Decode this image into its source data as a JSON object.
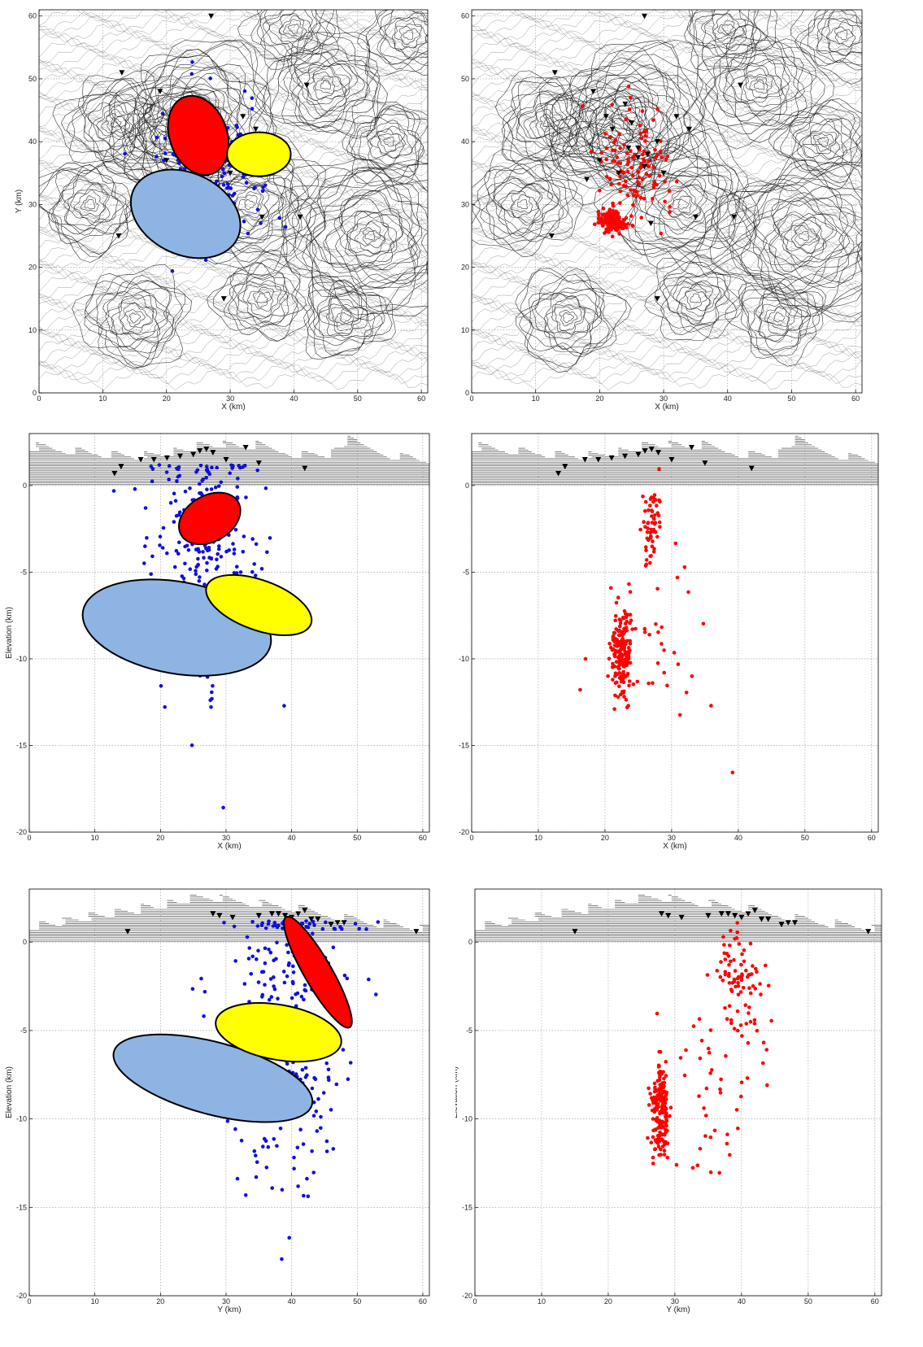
{
  "chart_data": [
    {
      "id": "map-blue",
      "type": "scatter",
      "title": "",
      "xlabel": "X (km)",
      "ylabel": "Y (km)",
      "xlim": [
        0,
        61
      ],
      "ylim": [
        0,
        61
      ],
      "xticks": [
        0,
        10,
        20,
        30,
        40,
        50,
        60
      ],
      "yticks": [
        0,
        10,
        20,
        30,
        40,
        50,
        60
      ],
      "grid": true,
      "background": "topographic contour lines",
      "series": [
        {
          "marker": "dot",
          "color": "#1010e0",
          "cluster": {
            "cx": 27,
            "cy": 36,
            "sx": 4.0,
            "sy": 5.5,
            "n": 260
          }
        }
      ],
      "stations": [
        [
          13,
          51
        ],
        [
          19,
          48
        ],
        [
          21,
          44
        ],
        [
          22,
          42
        ],
        [
          24,
          46
        ],
        [
          25,
          43
        ],
        [
          26,
          39
        ],
        [
          27,
          36
        ],
        [
          23,
          35
        ],
        [
          18,
          34
        ],
        [
          20,
          37
        ],
        [
          28,
          27
        ],
        [
          35,
          28
        ],
        [
          41,
          28
        ],
        [
          42,
          49
        ],
        [
          34,
          42
        ],
        [
          32,
          44
        ],
        [
          29,
          40
        ],
        [
          30,
          35
        ],
        [
          12.5,
          25
        ],
        [
          29,
          15
        ],
        [
          27,
          60
        ],
        [
          24.5,
          39
        ],
        [
          26,
          37.5
        ],
        [
          27.5,
          38
        ]
      ],
      "ellipses": [
        {
          "name": "",
          "color": "#ff0000",
          "cx": 25,
          "cy": 41,
          "rx": 4.5,
          "ry": 6.5,
          "rotation": 20
        },
        {
          "name": "",
          "color": "#ffff00",
          "cx": 34.5,
          "cy": 38,
          "rx": 5,
          "ry": 3.5,
          "rotation": 0
        },
        {
          "name": "",
          "color": "#8eb4e3",
          "cx": 23,
          "cy": 28.5,
          "rx": 9,
          "ry": 6.5,
          "rotation": -25
        }
      ]
    },
    {
      "id": "map-red",
      "type": "scatter",
      "title": "",
      "xlabel": "X (km)",
      "ylabel": "Y (km)",
      "xlim": [
        0,
        61
      ],
      "ylim": [
        0,
        61
      ],
      "xticks": [
        0,
        10,
        20,
        30,
        40,
        50,
        60
      ],
      "yticks": [
        0,
        10,
        20,
        30,
        40,
        50,
        60
      ],
      "grid": true,
      "background": "topographic contour lines",
      "series": [
        {
          "marker": "dot",
          "color": "#ff0000",
          "cluster": {
            "cx": 26,
            "cy": 36,
            "sx": 2.5,
            "sy": 4.5,
            "n": 120
          }
        },
        {
          "marker": "dot",
          "color": "#ff0000",
          "cluster": {
            "cx": 22,
            "cy": 27.5,
            "sx": 1.0,
            "sy": 1.0,
            "n": 180
          }
        }
      ],
      "stations": [
        [
          13,
          51
        ],
        [
          19,
          48
        ],
        [
          21,
          44
        ],
        [
          22,
          42
        ],
        [
          24,
          46
        ],
        [
          25,
          43
        ],
        [
          26,
          39
        ],
        [
          27,
          36
        ],
        [
          23,
          35
        ],
        [
          18,
          34
        ],
        [
          20,
          37
        ],
        [
          28,
          27
        ],
        [
          35,
          28
        ],
        [
          41,
          28
        ],
        [
          42,
          49
        ],
        [
          34,
          42
        ],
        [
          32,
          44
        ],
        [
          29,
          40
        ],
        [
          30,
          35
        ],
        [
          12.5,
          25
        ],
        [
          29,
          15
        ],
        [
          27,
          60
        ],
        [
          24.5,
          39
        ],
        [
          26,
          37.5
        ],
        [
          27.5,
          38
        ]
      ]
    },
    {
      "id": "xsec-x-blue",
      "type": "scatter",
      "title": "",
      "xlabel": "X (km)",
      "ylabel": "Elevation (km)",
      "xlim": [
        0,
        61
      ],
      "ylim": [
        -20,
        3
      ],
      "xticks": [
        0,
        10,
        20,
        30,
        40,
        50,
        60
      ],
      "yticks": [
        -20,
        -15,
        -10,
        -5,
        0
      ],
      "grid": true,
      "background": "topographic profile",
      "topography": [
        [
          0,
          2.3
        ],
        [
          5,
          2.1
        ],
        [
          10,
          1.9
        ],
        [
          15,
          1.7
        ],
        [
          20,
          1.8
        ],
        [
          25,
          2.2
        ],
        [
          28,
          2.5
        ],
        [
          32,
          2.2
        ],
        [
          35,
          2.4
        ],
        [
          38,
          2.0
        ],
        [
          42,
          1.8
        ],
        [
          46,
          1.9
        ],
        [
          49,
          2.8
        ],
        [
          52,
          2.2
        ],
        [
          56,
          1.7
        ],
        [
          61,
          1.5
        ]
      ],
      "series": [
        {
          "marker": "dot",
          "color": "#1010e0",
          "cluster": {
            "cx": 27,
            "cy": -4,
            "sx": 4.5,
            "sy": 4,
            "n": 260
          }
        }
      ],
      "stations": [
        [
          13,
          0.7
        ],
        [
          14,
          1.1
        ],
        [
          17,
          1.5
        ],
        [
          19,
          1.5
        ],
        [
          21,
          1.6
        ],
        [
          23,
          1.7
        ],
        [
          25,
          1.8
        ],
        [
          26,
          2.0
        ],
        [
          27,
          2.1
        ],
        [
          28,
          1.9
        ],
        [
          30,
          1.5
        ],
        [
          33,
          2.2
        ],
        [
          35,
          1.3
        ],
        [
          42,
          1.0
        ]
      ],
      "ellipses": [
        {
          "name": "",
          "color": "#ff0000",
          "cx": 27.5,
          "cy": -1.9,
          "rx": 3.5,
          "ry": 1.9,
          "rotation": -60
        },
        {
          "name": "",
          "color": "#8eb4e3",
          "cx": 22.5,
          "cy": -8.2,
          "rx": 7,
          "ry": 5.5,
          "rotation": 80
        },
        {
          "name": "",
          "color": "#ffff00",
          "cx": 35,
          "cy": -6.9,
          "rx": 3.8,
          "ry": 3.2,
          "rotation": 70
        }
      ]
    },
    {
      "id": "xsec-x-red",
      "type": "scatter",
      "title": "",
      "xlabel": "X (km)",
      "ylabel": "Elevation (km)",
      "xlim": [
        0,
        61
      ],
      "ylim": [
        -20,
        3
      ],
      "xticks": [
        0,
        10,
        20,
        30,
        40,
        50,
        60
      ],
      "yticks": [
        -20,
        -15,
        -10,
        -5,
        0
      ],
      "grid": true,
      "background": "topographic profile",
      "topography": [
        [
          0,
          2.3
        ],
        [
          5,
          2.1
        ],
        [
          10,
          1.9
        ],
        [
          15,
          1.7
        ],
        [
          20,
          1.8
        ],
        [
          25,
          2.2
        ],
        [
          28,
          2.5
        ],
        [
          32,
          2.2
        ],
        [
          35,
          2.4
        ],
        [
          38,
          2.0
        ],
        [
          42,
          1.8
        ],
        [
          46,
          1.9
        ],
        [
          49,
          2.8
        ],
        [
          52,
          2.2
        ],
        [
          56,
          1.7
        ],
        [
          61,
          1.5
        ]
      ],
      "series": [
        {
          "marker": "dot",
          "color": "#ff0000",
          "cluster": {
            "cx": 27,
            "cy": -2.5,
            "sx": 0.8,
            "sy": 1.5,
            "n": 60
          }
        },
        {
          "marker": "dot",
          "color": "#ff0000",
          "cluster": {
            "cx": 22.5,
            "cy": -9.5,
            "sx": 0.8,
            "sy": 1.3,
            "n": 180
          }
        },
        {
          "marker": "dot",
          "color": "#ff0000",
          "cluster": {
            "cx": 28,
            "cy": -10,
            "sx": 4,
            "sy": 2.5,
            "n": 35
          }
        }
      ],
      "stations": [
        [
          13,
          0.7
        ],
        [
          14,
          1.1
        ],
        [
          17,
          1.5
        ],
        [
          19,
          1.5
        ],
        [
          21,
          1.6
        ],
        [
          23,
          1.7
        ],
        [
          25,
          1.8
        ],
        [
          26,
          2.0
        ],
        [
          27,
          2.1
        ],
        [
          28,
          1.9
        ],
        [
          30,
          1.5
        ],
        [
          33,
          2.2
        ],
        [
          35,
          1.3
        ],
        [
          42,
          1.0
        ]
      ]
    },
    {
      "id": "xsec-y-blue",
      "type": "scatter",
      "title": "",
      "xlabel": "Y (km)",
      "ylabel": "Elevation (km)",
      "xlim": [
        0,
        61
      ],
      "ylim": [
        -20,
        3
      ],
      "xticks": [
        0,
        10,
        20,
        30,
        40,
        50,
        60
      ],
      "yticks": [
        -20,
        -15,
        -10,
        -5,
        0
      ],
      "grid": true,
      "background": "topographic profile",
      "topography": [
        [
          0,
          0.9
        ],
        [
          5,
          1.2
        ],
        [
          10,
          1.5
        ],
        [
          15,
          1.8
        ],
        [
          20,
          2.1
        ],
        [
          24,
          2.4
        ],
        [
          27,
          2.7
        ],
        [
          30,
          2.4
        ],
        [
          35,
          2.2
        ],
        [
          40,
          2.0
        ],
        [
          45,
          1.6
        ],
        [
          50,
          1.3
        ],
        [
          55,
          1.0
        ],
        [
          61,
          0.8
        ]
      ],
      "series": [
        {
          "marker": "dot",
          "color": "#1010e0",
          "cluster": {
            "cx": 39,
            "cy": -4.5,
            "sx": 5,
            "sy": 4.5,
            "n": 300
          }
        }
      ],
      "stations": [
        [
          15,
          0.6
        ],
        [
          28,
          1.6
        ],
        [
          29,
          1.5
        ],
        [
          31,
          1.4
        ],
        [
          35,
          1.5
        ],
        [
          37,
          1.6
        ],
        [
          38,
          1.6
        ],
        [
          39,
          1.5
        ],
        [
          40,
          1.4
        ],
        [
          41,
          1.6
        ],
        [
          42,
          1.8
        ],
        [
          43,
          1.3
        ],
        [
          44,
          1.3
        ],
        [
          46,
          1.0
        ],
        [
          47,
          1.1
        ],
        [
          48,
          1.1
        ],
        [
          59,
          0.6
        ]
      ],
      "ellipses": [
        {
          "name": "",
          "color": "#8eb4e3",
          "cx": 28,
          "cy": -7.7,
          "rx": 5.5,
          "ry": 5.8,
          "rotation": 75
        },
        {
          "name": "",
          "color": "#ffff00",
          "cx": 38,
          "cy": -5.1,
          "rx": 4.2,
          "ry": 3.6,
          "rotation": 80
        },
        {
          "name": "",
          "color": "#ff0000",
          "cx": 44,
          "cy": -1.7,
          "rx": 2.1,
          "ry": 3.6,
          "rotation": 30
        }
      ]
    },
    {
      "id": "xsec-y-red",
      "type": "scatter",
      "title": "",
      "xlabel": "Y (km)",
      "ylabel": "Elevation (km)",
      "xlim": [
        0,
        61
      ],
      "ylim": [
        -20,
        3
      ],
      "xticks": [
        0,
        10,
        20,
        30,
        40,
        50,
        60
      ],
      "yticks": [
        -20,
        -15,
        -10,
        -5,
        0
      ],
      "grid": true,
      "background": "topographic profile",
      "topography": [
        [
          0,
          0.9
        ],
        [
          5,
          1.2
        ],
        [
          10,
          1.5
        ],
        [
          15,
          1.8
        ],
        [
          20,
          2.1
        ],
        [
          24,
          2.4
        ],
        [
          27,
          2.7
        ],
        [
          30,
          2.4
        ],
        [
          35,
          2.2
        ],
        [
          40,
          2.0
        ],
        [
          45,
          1.6
        ],
        [
          50,
          1.3
        ],
        [
          55,
          1.0
        ],
        [
          61,
          0.8
        ]
      ],
      "series": [
        {
          "marker": "dot",
          "color": "#ff0000",
          "cluster": {
            "cx": 40,
            "cy": -2.5,
            "sx": 2,
            "sy": 1.8,
            "n": 90
          }
        },
        {
          "marker": "dot",
          "color": "#ff0000",
          "cluster": {
            "cx": 27.8,
            "cy": -9.5,
            "sx": 0.7,
            "sy": 1.3,
            "n": 170
          }
        },
        {
          "marker": "dot",
          "color": "#ff0000",
          "cluster": {
            "cx": 36,
            "cy": -8.5,
            "sx": 3.5,
            "sy": 2.5,
            "n": 40
          }
        }
      ],
      "stations": [
        [
          15,
          0.6
        ],
        [
          28,
          1.6
        ],
        [
          29,
          1.5
        ],
        [
          31,
          1.4
        ],
        [
          35,
          1.5
        ],
        [
          37,
          1.6
        ],
        [
          38,
          1.6
        ],
        [
          39,
          1.5
        ],
        [
          40,
          1.4
        ],
        [
          41,
          1.6
        ],
        [
          42,
          1.8
        ],
        [
          43,
          1.3
        ],
        [
          44,
          1.3
        ],
        [
          46,
          1.0
        ],
        [
          47,
          1.1
        ],
        [
          48,
          1.1
        ],
        [
          59,
          0.6
        ]
      ]
    }
  ]
}
